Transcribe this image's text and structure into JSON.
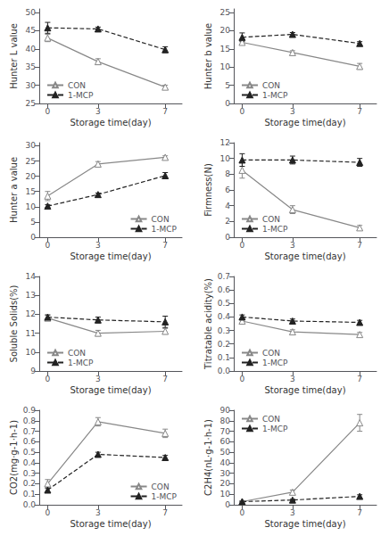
{
  "chart_data": [
    {
      "type": "line",
      "x": [
        0,
        3,
        7
      ],
      "xlabel": "Storage time(day)",
      "ylabel": "Hunter L value",
      "xlim": [
        -0.5,
        8.0
      ],
      "xticks": [
        0,
        3,
        7
      ],
      "ylim": [
        25,
        51
      ],
      "yticks": [
        25,
        30,
        35,
        40,
        45,
        50
      ],
      "grid": false,
      "legend": "lower left",
      "series": [
        {
          "name": "CON",
          "color": "#888888",
          "marker": "triangle-open",
          "line_style": "solid",
          "values": [
            43.0,
            36.5,
            29.5
          ],
          "errors": [
            1.0,
            0.8,
            0.5
          ]
        },
        {
          "name": "1-MCP",
          "color": "#222222",
          "marker": "triangle",
          "line_style": "dashed",
          "values": [
            45.8,
            45.5,
            39.8
          ],
          "errors": [
            1.5,
            0.5,
            0.8
          ]
        }
      ]
    },
    {
      "type": "line",
      "x": [
        0,
        3,
        7
      ],
      "xlabel": "Storage time(day)",
      "ylabel": "Hunter b value",
      "xlim": [
        -0.5,
        8.0
      ],
      "xticks": [
        0,
        3,
        7
      ],
      "ylim": [
        0,
        26
      ],
      "yticks": [
        0,
        5,
        10,
        15,
        20,
        25
      ],
      "grid": false,
      "legend": "lower left",
      "series": [
        {
          "name": "CON",
          "color": "#888888",
          "marker": "triangle-open",
          "line_style": "solid",
          "values": [
            16.8,
            14.0,
            10.2
          ],
          "errors": [
            0.5,
            0.5,
            0.8
          ]
        },
        {
          "name": "1-MCP",
          "color": "#222222",
          "marker": "triangle",
          "line_style": "dashed",
          "values": [
            18.2,
            19.0,
            16.5
          ],
          "errors": [
            1.2,
            0.5,
            0.5
          ]
        }
      ]
    },
    {
      "type": "line",
      "x": [
        0,
        3,
        7
      ],
      "xlabel": "Storage time(day)",
      "ylabel": "Hunter a value",
      "xlim": [
        -0.5,
        8.0
      ],
      "xticks": [
        0,
        3,
        7
      ],
      "ylim": [
        0,
        31
      ],
      "yticks": [
        0,
        5,
        10,
        15,
        20,
        25,
        30
      ],
      "grid": false,
      "legend": "lower right",
      "series": [
        {
          "name": "CON",
          "color": "#888888",
          "marker": "triangle-open",
          "line_style": "solid",
          "values": [
            13.5,
            24.0,
            26.2
          ],
          "errors": [
            1.5,
            0.8,
            0.5
          ]
        },
        {
          "name": "1-MCP",
          "color": "#222222",
          "marker": "triangle",
          "line_style": "dashed",
          "values": [
            10.2,
            14.0,
            20.2
          ],
          "errors": [
            0.5,
            0.5,
            1.0
          ]
        }
      ]
    },
    {
      "type": "line",
      "x": [
        0,
        3,
        7
      ],
      "xlabel": "Storage time(day)",
      "ylabel": "Firmness(N)",
      "xlim": [
        -0.5,
        8.0
      ],
      "xticks": [
        0,
        3,
        7
      ],
      "ylim": [
        0,
        12
      ],
      "yticks": [
        0,
        2,
        4,
        6,
        8,
        10,
        12
      ],
      "grid": false,
      "legend": "lower left",
      "series": [
        {
          "name": "CON",
          "color": "#888888",
          "marker": "triangle-open",
          "line_style": "solid",
          "values": [
            8.5,
            3.5,
            1.2
          ],
          "errors": [
            1.0,
            0.5,
            0.3
          ]
        },
        {
          "name": "1-MCP",
          "color": "#222222",
          "marker": "triangle",
          "line_style": "dashed",
          "values": [
            9.8,
            9.8,
            9.5
          ],
          "errors": [
            0.8,
            0.5,
            0.5
          ]
        }
      ]
    },
    {
      "type": "line",
      "x": [
        0,
        3,
        7
      ],
      "xlabel": "Storage time(day)",
      "ylabel": "Soluble Solids(%)",
      "xlim": [
        -0.5,
        8.0
      ],
      "xticks": [
        0,
        3,
        7
      ],
      "ylim": [
        9,
        14
      ],
      "yticks": [
        9,
        10,
        11,
        12,
        13,
        14
      ],
      "grid": false,
      "legend": "lower left",
      "series": [
        {
          "name": "CON",
          "color": "#888888",
          "marker": "triangle-open",
          "line_style": "solid",
          "values": [
            11.8,
            11.0,
            11.1
          ],
          "errors": [
            0.15,
            0.15,
            0.15
          ]
        },
        {
          "name": "1-MCP",
          "color": "#222222",
          "marker": "triangle",
          "line_style": "dashed",
          "values": [
            11.85,
            11.7,
            11.6
          ],
          "errors": [
            0.12,
            0.15,
            0.3
          ]
        }
      ]
    },
    {
      "type": "line",
      "x": [
        0,
        3,
        7
      ],
      "xlabel": "Storage time(day)",
      "ylabel": "Titratable acidity(%)",
      "xlim": [
        -0.5,
        8.0
      ],
      "xticks": [
        0,
        3,
        7
      ],
      "ylim": [
        0.0,
        0.7
      ],
      "yticks": [
        {
          "value": 0.0,
          "label": "0.0"
        },
        0.1,
        0.2,
        0.3,
        0.4,
        0.5,
        0.6,
        0.7
      ],
      "grid": false,
      "legend": "lower left",
      "series": [
        {
          "name": "CON",
          "color": "#888888",
          "marker": "triangle-open",
          "line_style": "solid",
          "values": [
            0.37,
            0.29,
            0.27
          ],
          "errors": [
            0.015,
            0.015,
            0.015
          ]
        },
        {
          "name": "1-MCP",
          "color": "#222222",
          "marker": "triangle",
          "line_style": "dashed",
          "values": [
            0.4,
            0.37,
            0.36
          ],
          "errors": [
            0.015,
            0.015,
            0.015
          ]
        }
      ]
    },
    {
      "type": "line",
      "x": [
        0,
        3,
        7
      ],
      "xlabel": "Storage time(day)",
      "ylabel": "CO2(mg·g-1·h-1)",
      "xlim": [
        -0.5,
        8.0
      ],
      "xticks": [
        0,
        3,
        7
      ],
      "ylim": [
        0.0,
        0.9
      ],
      "yticks": [
        {
          "value": 0.0,
          "label": "0.0"
        },
        0.1,
        0.2,
        0.3,
        0.4,
        0.5,
        0.6,
        0.7,
        0.8,
        0.9
      ],
      "grid": false,
      "legend": "lower right",
      "series": [
        {
          "name": "CON",
          "color": "#888888",
          "marker": "triangle-open",
          "line_style": "solid",
          "values": [
            0.2,
            0.79,
            0.68
          ],
          "errors": [
            0.04,
            0.04,
            0.04
          ]
        },
        {
          "name": "1-MCP",
          "color": "#222222",
          "marker": "triangle",
          "line_style": "dashed",
          "values": [
            0.14,
            0.48,
            0.45
          ],
          "errors": [
            0.02,
            0.02,
            0.02
          ]
        }
      ]
    },
    {
      "type": "line",
      "x": [
        0,
        3,
        7
      ],
      "xlabel": "Storage time(day)",
      "ylabel": "C2H4(nL·g-1·h-1)",
      "xlim": [
        -0.5,
        8.0
      ],
      "xticks": [
        0,
        3,
        7
      ],
      "ylim": [
        0,
        90
      ],
      "yticks": [
        0,
        10,
        20,
        30,
        40,
        50,
        60,
        70,
        80,
        90
      ],
      "grid": false,
      "legend": "upper left",
      "series": [
        {
          "name": "CON",
          "color": "#888888",
          "marker": "triangle-open",
          "line_style": "solid",
          "values": [
            3.0,
            12.0,
            78.0
          ],
          "errors": [
            0.5,
            2.0,
            8.0
          ]
        },
        {
          "name": "1-MCP",
          "color": "#222222",
          "marker": "triangle",
          "line_style": "dashed",
          "values": [
            3.0,
            4.5,
            8.0
          ],
          "errors": [
            0.5,
            0.8,
            1.5
          ]
        }
      ]
    }
  ]
}
